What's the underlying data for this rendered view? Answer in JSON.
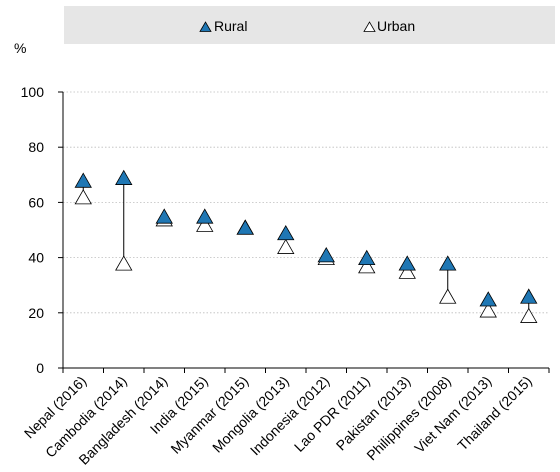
{
  "chart_data": {
    "type": "scatter",
    "ylabel": "%",
    "ylim": [
      0,
      100
    ],
    "yticks": [
      0,
      20,
      40,
      60,
      80,
      100
    ],
    "grid": "horizontal dotted",
    "legend_position": "top",
    "categories": [
      "Nepal (2016)",
      "Cambodia (2014)",
      "Bangladesh (2014)",
      "India (2015)",
      "Myanmar (2015)",
      "Mongolia (2013)",
      "Indonesia (2012)",
      "Lao PDR (2011)",
      "Pakistan (2013)",
      "Philippines (2008)",
      "Viet Nam (2013)",
      "Thailand (2015)"
    ],
    "series": [
      {
        "name": "Rural",
        "marker": "filled-triangle",
        "color": "#1f77b4",
        "values": [
          68,
          69,
          55,
          55,
          51,
          49,
          41,
          40,
          38,
          38,
          25,
          26
        ]
      },
      {
        "name": "Urban",
        "marker": "open-triangle",
        "color": "#ffffff",
        "values": [
          62,
          38,
          54,
          52,
          51,
          44,
          40,
          37,
          35,
          26,
          21,
          19
        ]
      }
    ]
  },
  "colors": {
    "legend_bg": "#e6e6e6",
    "rural_fill": "#1f77b4",
    "marker_stroke": "#000000",
    "grid": "#bdbdbd"
  }
}
